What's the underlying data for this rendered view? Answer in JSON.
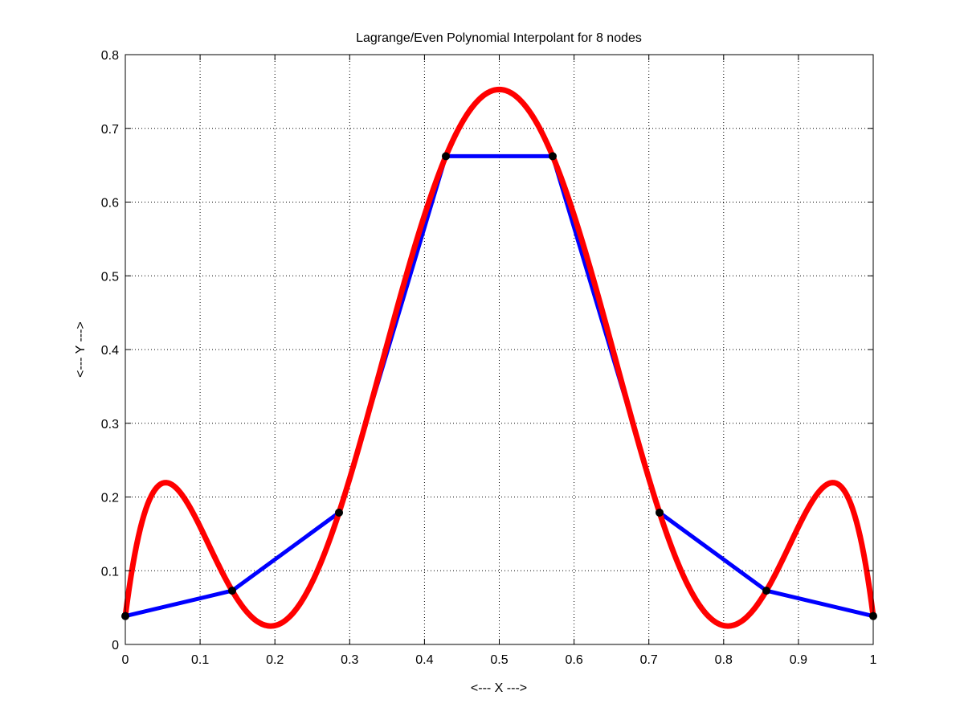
{
  "chart_data": {
    "type": "line",
    "title": "Lagrange/Even Polynomial Interpolant for 8 nodes",
    "xlabel": "<--- X --->",
    "ylabel": "<--- Y --->",
    "xlim": [
      0,
      1
    ],
    "ylim": [
      0,
      0.8
    ],
    "xticks": [
      0,
      0.1,
      0.2,
      0.3,
      0.4,
      0.5,
      0.6,
      0.7,
      0.8,
      0.9,
      1
    ],
    "xtick_labels": [
      "0",
      "0.1",
      "0.2",
      "0.3",
      "0.4",
      "0.5",
      "0.6",
      "0.7",
      "0.8",
      "0.9",
      "1"
    ],
    "yticks": [
      0,
      0.1,
      0.2,
      0.3,
      0.4,
      0.5,
      0.6,
      0.7,
      0.8
    ],
    "ytick_labels": [
      "0",
      "0.1",
      "0.2",
      "0.3",
      "0.4",
      "0.5",
      "0.6",
      "0.7",
      "0.8"
    ],
    "grid": true,
    "grid_style": "dotted",
    "legend": "none",
    "series": [
      {
        "kind": "piecewise-linear",
        "color": "#0000ff",
        "x": [
          0,
          0.142857,
          0.285714,
          0.428571,
          0.571429,
          0.714286,
          0.857143,
          1
        ],
        "y": [
          0.0385,
          0.0729,
          0.1788,
          0.6622,
          0.6622,
          0.1788,
          0.0729,
          0.0385
        ]
      },
      {
        "kind": "interpolating-polynomial",
        "color": "#ff0000",
        "x": [
          0,
          0.142857,
          0.285714,
          0.428571,
          0.571429,
          0.714286,
          0.857143,
          1
        ],
        "y": [
          0.0385,
          0.0729,
          0.1788,
          0.6622,
          0.6622,
          0.1788,
          0.0729,
          0.0385
        ]
      },
      {
        "kind": "nodes",
        "color": "#000000",
        "x": [
          0,
          0.142857,
          0.285714,
          0.428571,
          0.571429,
          0.714286,
          0.857143,
          1
        ],
        "y": [
          0.0385,
          0.0729,
          0.1788,
          0.6622,
          0.6622,
          0.1788,
          0.0729,
          0.0385
        ]
      }
    ]
  }
}
